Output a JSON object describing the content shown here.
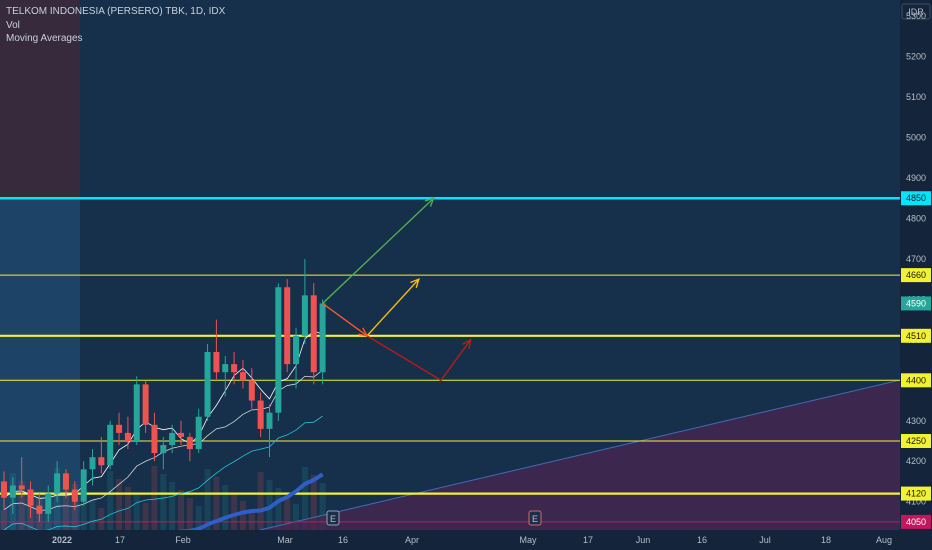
{
  "header": {
    "title": "TELKOM INDONESIA (PERSERO) TBK, 1D, IDX",
    "vol_label": "Vol",
    "ma_label": "Moving Averages"
  },
  "currency": "IDR",
  "colors": {
    "background": "#16293f",
    "up": "#26a69a",
    "down": "#ef5350",
    "level_line": "#f2f230",
    "target_line": "#00e5ff",
    "trendline": "#3d6fb8",
    "ma_slow": "#2e5ec7"
  },
  "chart_data": {
    "type": "candlestick",
    "y_axis": {
      "range": [
        4030,
        5340
      ],
      "ticks": [
        4100,
        4200,
        4300,
        4400,
        4500,
        4600,
        4700,
        4800,
        4900,
        5000,
        5100,
        5200,
        5300
      ]
    },
    "x_axis": {
      "tick_labels": [
        "2022",
        "17",
        "Feb",
        "Mar",
        "16",
        "Apr",
        "May",
        "17",
        "Jun",
        "16",
        "Jul",
        "18",
        "Aug"
      ]
    },
    "horizontal_levels": [
      {
        "label": "4850",
        "value": 4850,
        "style": "target"
      },
      {
        "label": "4660",
        "value": 4660,
        "style": "thin"
      },
      {
        "label": "4510",
        "value": 4510,
        "style": "thick"
      },
      {
        "label": "4400",
        "value": 4400,
        "style": "thin"
      },
      {
        "label": "4250",
        "value": 4250,
        "style": "thin"
      },
      {
        "label": "4120",
        "value": 4120,
        "style": "thick"
      }
    ],
    "last_price_label": "4590",
    "last_price": 4590,
    "low_tag_label": "4050",
    "low_tag": 4050,
    "event_markers": [
      "E",
      "E"
    ],
    "candles": [
      {
        "o": 4150,
        "h": 4175,
        "l": 4080,
        "c": 4110
      },
      {
        "o": 4110,
        "h": 4160,
        "l": 4070,
        "c": 4140
      },
      {
        "o": 4140,
        "h": 4210,
        "l": 4110,
        "c": 4130
      },
      {
        "o": 4130,
        "h": 4150,
        "l": 4060,
        "c": 4090
      },
      {
        "o": 4090,
        "h": 4120,
        "l": 4050,
        "c": 4070
      },
      {
        "o": 4070,
        "h": 4140,
        "l": 4050,
        "c": 4120
      },
      {
        "o": 4120,
        "h": 4200,
        "l": 4100,
        "c": 4170
      },
      {
        "o": 4170,
        "h": 4180,
        "l": 4110,
        "c": 4130
      },
      {
        "o": 4130,
        "h": 4150,
        "l": 4080,
        "c": 4100
      },
      {
        "o": 4100,
        "h": 4200,
        "l": 4090,
        "c": 4180
      },
      {
        "o": 4180,
        "h": 4230,
        "l": 4140,
        "c": 4210
      },
      {
        "o": 4210,
        "h": 4260,
        "l": 4170,
        "c": 4190
      },
      {
        "o": 4190,
        "h": 4300,
        "l": 4180,
        "c": 4290
      },
      {
        "o": 4290,
        "h": 4320,
        "l": 4240,
        "c": 4270
      },
      {
        "o": 4270,
        "h": 4310,
        "l": 4230,
        "c": 4250
      },
      {
        "o": 4250,
        "h": 4410,
        "l": 4240,
        "c": 4390
      },
      {
        "o": 4390,
        "h": 4400,
        "l": 4270,
        "c": 4290
      },
      {
        "o": 4290,
        "h": 4320,
        "l": 4200,
        "c": 4220
      },
      {
        "o": 4220,
        "h": 4260,
        "l": 4180,
        "c": 4240
      },
      {
        "o": 4240,
        "h": 4290,
        "l": 4220,
        "c": 4270
      },
      {
        "o": 4270,
        "h": 4300,
        "l": 4240,
        "c": 4260
      },
      {
        "o": 4260,
        "h": 4270,
        "l": 4200,
        "c": 4230
      },
      {
        "o": 4230,
        "h": 4330,
        "l": 4220,
        "c": 4310
      },
      {
        "o": 4310,
        "h": 4490,
        "l": 4300,
        "c": 4470
      },
      {
        "o": 4470,
        "h": 4550,
        "l": 4400,
        "c": 4420
      },
      {
        "o": 4420,
        "h": 4460,
        "l": 4360,
        "c": 4440
      },
      {
        "o": 4440,
        "h": 4470,
        "l": 4390,
        "c": 4420
      },
      {
        "o": 4420,
        "h": 4450,
        "l": 4380,
        "c": 4400
      },
      {
        "o": 4400,
        "h": 4430,
        "l": 4330,
        "c": 4350
      },
      {
        "o": 4350,
        "h": 4370,
        "l": 4260,
        "c": 4280
      },
      {
        "o": 4280,
        "h": 4340,
        "l": 4210,
        "c": 4320
      },
      {
        "o": 4320,
        "h": 4640,
        "l": 4300,
        "c": 4630
      },
      {
        "o": 4630,
        "h": 4650,
        "l": 4420,
        "c": 4440
      },
      {
        "o": 4440,
        "h": 4530,
        "l": 4380,
        "c": 4510
      },
      {
        "o": 4510,
        "h": 4700,
        "l": 4490,
        "c": 4610
      },
      {
        "o": 4610,
        "h": 4640,
        "l": 4390,
        "c": 4420
      },
      {
        "o": 4420,
        "h": 4600,
        "l": 4390,
        "c": 4590
      }
    ],
    "projection_paths": [
      {
        "color": "#4caf50",
        "points": [
          [
            0,
            4590
          ],
          [
            15,
            4850
          ]
        ]
      },
      {
        "color": "#ff5722",
        "points": [
          [
            0,
            4590
          ],
          [
            6,
            4510
          ]
        ]
      },
      {
        "color": "#ffc107",
        "points": [
          [
            6,
            4510
          ],
          [
            13,
            4650
          ]
        ]
      },
      {
        "color": "#b71c1c",
        "points": [
          [
            6,
            4510
          ],
          [
            16,
            4400
          ],
          [
            20,
            4500
          ]
        ]
      }
    ]
  }
}
